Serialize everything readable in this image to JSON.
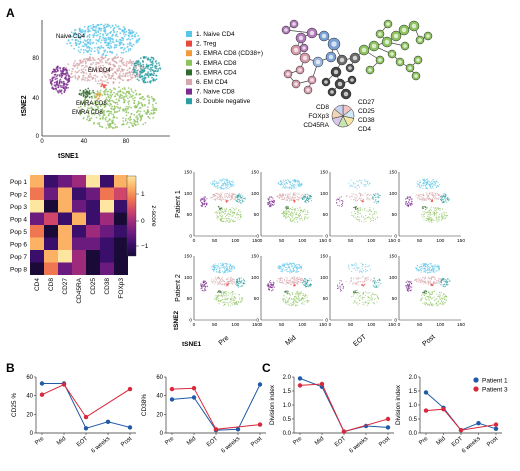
{
  "panels": {
    "A": "A",
    "B": "B",
    "C": "C"
  },
  "tsne_main": {
    "xlabel": "tSNE1",
    "ylabel": "tSNE2",
    "xticks": [
      "0",
      "40",
      "80"
    ],
    "yticks": [
      "0",
      "40",
      "80"
    ],
    "cluster_labels": [
      "Naive CD4",
      "EM CD4",
      "EMRA CD8",
      "EMRA CD8"
    ]
  },
  "legend": {
    "items": [
      {
        "label": "1. Naive CD4",
        "color": "#5bc5e8"
      },
      {
        "label": "2. Treg",
        "color": "#e8473b"
      },
      {
        "label": "3. EMRA CD8 (CD38+)",
        "color": "#f39a3b"
      },
      {
        "label": "4. EMRA CD8",
        "color": "#8dc35f"
      },
      {
        "label": "5. EMRA CD4",
        "color": "#2f6b2d"
      },
      {
        "label": "6. EM CD4",
        "color": "#d6a8ad"
      },
      {
        "label": "7. Naive CD8",
        "color": "#7b2c8f"
      },
      {
        "label": "8. Double negative",
        "color": "#2a9fa3"
      }
    ]
  },
  "pie_key": {
    "left": [
      "CD8",
      "FOXp3",
      "CD45RA"
    ],
    "right": [
      "CD27",
      "CD25",
      "CD38",
      "CD4"
    ]
  },
  "heatmap": {
    "rows": [
      "Pop 1",
      "Pop 2",
      "Pop 3",
      "Pop 4",
      "Pop 5",
      "Pop 6",
      "Pop 7",
      "Pop 8"
    ],
    "cols": [
      "CD4",
      "CD8",
      "CD27",
      "CD45RA",
      "CD25",
      "CD38",
      "FOXp3"
    ],
    "colorbar_label": "z-score",
    "colorbar_ticks": [
      "1",
      "0",
      "−1"
    ]
  },
  "small_tsne": {
    "rows": [
      "Patient 1",
      "Patient 2"
    ],
    "cols": [
      "Pre",
      "Mid",
      "EOT",
      "Post"
    ],
    "xlabel": "tSNE1",
    "ylabel": "tSNE2",
    "xticks": [
      "0",
      "50",
      "100",
      "150"
    ],
    "yticks": [
      "0",
      "50",
      "100",
      "150"
    ]
  },
  "line_legend": {
    "p1": "Patient 1",
    "p3": "Patient 3",
    "p1_color": "#1f5aa6",
    "p3_color": "#d8283b"
  },
  "chart_data": [
    {
      "type": "line",
      "ylabel": "CD25 %",
      "categories": [
        "Pre",
        "Mid",
        "EOT",
        "6 weeks",
        "Post"
      ],
      "ylim": [
        0,
        60
      ],
      "yticks": [
        0,
        20,
        40,
        60
      ],
      "series": [
        {
          "x": [
            "Pre",
            "Mid",
            "EOT",
            "6 weeks",
            "Post"
          ],
          "values": [
            53,
            53,
            5,
            12,
            6
          ],
          "color": "#1f5aa6"
        },
        {
          "x": [
            "Pre",
            "Mid",
            "EOT",
            "Post"
          ],
          "values": [
            41,
            52,
            17,
            47
          ],
          "color": "#d8283b"
        }
      ]
    },
    {
      "type": "line",
      "ylabel": "CD38%",
      "categories": [
        "Pre",
        "Mid",
        "EOT",
        "6 weeks",
        "Post"
      ],
      "ylim": [
        0,
        60
      ],
      "yticks": [
        0,
        20,
        40,
        60
      ],
      "series": [
        {
          "x": [
            "Pre",
            "Mid",
            "EOT",
            "6 weeks",
            "Post"
          ],
          "values": [
            36,
            38,
            3,
            4,
            52
          ],
          "color": "#1f5aa6"
        },
        {
          "x": [
            "Pre",
            "Mid",
            "EOT",
            "Post"
          ],
          "values": [
            47,
            48,
            4,
            9
          ],
          "color": "#d8283b"
        }
      ]
    },
    {
      "type": "line",
      "ylabel": "Division index",
      "categories": [
        "Pre",
        "Mid",
        "EOT",
        "6 weeks",
        "Post"
      ],
      "ylim": [
        0,
        2.0
      ],
      "yticks": [
        0,
        0.5,
        1.0,
        1.5,
        2.0
      ],
      "series": [
        {
          "x": [
            "Pre",
            "Mid",
            "EOT",
            "6 weeks",
            "Post"
          ],
          "values": [
            1.95,
            1.65,
            0.05,
            0.25,
            0.2
          ],
          "color": "#1f5aa6"
        },
        {
          "x": [
            "Pre",
            "Mid",
            "EOT",
            "Post"
          ],
          "values": [
            1.7,
            1.75,
            0.05,
            0.5
          ],
          "color": "#d8283b"
        }
      ]
    },
    {
      "type": "line",
      "ylabel": "Division index",
      "categories": [
        "Pre",
        "Mid",
        "EOT",
        "6 weeks",
        "Post"
      ],
      "ylim": [
        0,
        2.0
      ],
      "yticks": [
        0,
        0.5,
        1.0,
        1.5,
        2.0
      ],
      "series": [
        {
          "x": [
            "Pre",
            "Mid",
            "EOT",
            "6 weeks",
            "Post"
          ],
          "values": [
            1.45,
            0.9,
            0.1,
            0.35,
            0.15
          ],
          "color": "#1f5aa6"
        },
        {
          "x": [
            "Pre",
            "Mid",
            "EOT",
            "Post"
          ],
          "values": [
            0.8,
            0.85,
            0.1,
            0.3
          ],
          "color": "#d8283b"
        }
      ]
    }
  ]
}
